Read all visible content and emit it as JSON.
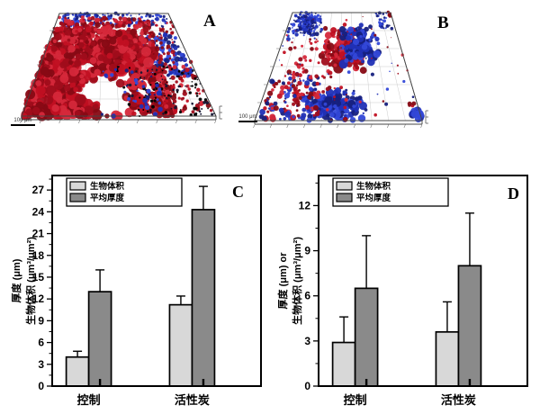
{
  "figure": {
    "background": "#ffffff"
  },
  "palettes": {
    "reds": [
      "#c11022",
      "#a00d1b",
      "#d5283a",
      "#870a14"
    ],
    "blues": [
      "#2030b6",
      "#16207e",
      "#3348d8"
    ],
    "darks": [
      "#141430",
      "#000000"
    ]
  },
  "panels": {
    "a": {
      "label": "A",
      "scale_bar": "100 μm",
      "render": {
        "seed": 11,
        "geom": {
          "tl": [
            66,
            15
          ],
          "tr": [
            187,
            15
          ],
          "bl": [
            24,
            129
          ],
          "br": [
            240,
            129
          ]
        },
        "holes": [
          [
            0.42,
            0.75,
            0.12
          ],
          [
            0.3,
            0.52,
            0.06
          ],
          [
            0.55,
            0.62,
            0.06
          ],
          [
            0.47,
            0.9,
            0.08
          ]
        ],
        "clusters": [
          {
            "palette": "blues",
            "shape": "box",
            "u": [
              0.04,
              0.97
            ],
            "v": [
              0.0,
              0.13
            ],
            "count": 170,
            "r": [
              1.5,
              4.0
            ]
          },
          {
            "palette": "blues",
            "shape": "box",
            "u": [
              0.7,
              0.97
            ],
            "v": [
              0.2,
              0.62
            ],
            "count": 110,
            "r": [
              1.5,
              4.0
            ]
          },
          {
            "palette": "reds",
            "shape": "box",
            "u": [
              0.0,
              0.8
            ],
            "v": [
              0.04,
              1.0
            ],
            "count": 800,
            "r": [
              2.0,
              5.0
            ]
          },
          {
            "palette": "reds",
            "shape": "gauss",
            "c": [
              0.45,
              0.42
            ],
            "s": [
              0.2,
              0.2
            ],
            "count": 420,
            "r": [
              3.0,
              7.0
            ]
          },
          {
            "palette": "reds",
            "shape": "box",
            "u": [
              0.0,
              0.3
            ],
            "v": [
              0.15,
              1.0
            ],
            "count": 300,
            "r": [
              2.5,
              5.5
            ]
          },
          {
            "palette": "reds",
            "shape": "box",
            "u": [
              0.75,
              1.0
            ],
            "v": [
              0.08,
              1.0
            ],
            "count": 130,
            "r": [
              1.2,
              3.0
            ]
          },
          {
            "palette": "darks",
            "shape": "box",
            "u": [
              0.5,
              1.0
            ],
            "v": [
              0.5,
              1.0
            ],
            "count": 140,
            "r": [
              0.7,
              1.6
            ]
          },
          {
            "palette": "blues",
            "shape": "box",
            "u": [
              0.4,
              0.75
            ],
            "v": [
              0.55,
              1.0
            ],
            "count": 60,
            "r": [
              1.0,
              2.5
            ]
          }
        ]
      }
    },
    "b": {
      "label": "B",
      "scale_bar": "100 μm",
      "render": {
        "seed": 29,
        "geom": {
          "tl": [
            67,
            14
          ],
          "tr": [
            176,
            14
          ],
          "bl": [
            25,
            134
          ],
          "br": [
            211,
            134
          ]
        },
        "holes": [],
        "clusters": [
          {
            "palette": "blues",
            "shape": "gauss",
            "c": [
              0.17,
              0.1
            ],
            "s": [
              0.09,
              0.08
            ],
            "count": 240,
            "r": [
              1.2,
              3.5
            ]
          },
          {
            "palette": "reds",
            "shape": "gauss",
            "c": [
              0.55,
              0.33
            ],
            "s": [
              0.12,
              0.12
            ],
            "count": 190,
            "r": [
              2.0,
              6.0
            ]
          },
          {
            "palette": "blues",
            "shape": "gauss",
            "c": [
              0.65,
              0.3
            ],
            "s": [
              0.11,
              0.12
            ],
            "count": 150,
            "r": [
              2.0,
              5.5
            ]
          },
          {
            "palette": "blues",
            "shape": "gauss",
            "c": [
              0.48,
              0.85
            ],
            "s": [
              0.13,
              0.09
            ],
            "count": 170,
            "r": [
              1.2,
              4.0
            ]
          },
          {
            "palette": "mix",
            "shape": "box",
            "u": [
              0.02,
              0.38
            ],
            "v": [
              0.55,
              1.0
            ],
            "count": 140,
            "r": [
              1.0,
              3.0
            ]
          },
          {
            "palette": "mix",
            "shape": "box",
            "u": [
              0.0,
              1.0
            ],
            "v": [
              0.0,
              1.0
            ],
            "count": 90,
            "r": [
              0.7,
              2.2
            ]
          },
          {
            "palette": "reds",
            "shape": "box",
            "u": [
              0.08,
              0.45
            ],
            "v": [
              0.25,
              0.62
            ],
            "count": 45,
            "r": [
              1.5,
              3.0
            ]
          },
          {
            "palette": "blues",
            "shape": "box",
            "u": [
              0.85,
              1.0
            ],
            "v": [
              0.0,
              0.15
            ],
            "count": 25,
            "r": [
              1.5,
              3.5
            ]
          },
          {
            "palette": "blues",
            "shape": "box",
            "u": [
              0.95,
              1.0
            ],
            "v": [
              0.9,
              1.0
            ],
            "count": 12,
            "r": [
              2.0,
              4.0
            ]
          },
          {
            "palette": "reds",
            "shape": "box",
            "u": [
              0.97,
              1.0
            ],
            "v": [
              0.0,
              0.05
            ],
            "count": 6,
            "r": [
              2.0,
              3.5
            ]
          }
        ]
      }
    }
  },
  "chart_data": [
    {
      "type": "bar",
      "panel_label": "C",
      "categories": [
        "控制",
        "活性炭"
      ],
      "category_pos": [
        0.175,
        0.67
      ],
      "series": [
        {
          "name": "生物体积",
          "values": [
            4.0,
            11.2
          ],
          "errors_plus": [
            0.8,
            1.2
          ],
          "color": "#d8d8d8"
        },
        {
          "name": "平均厚度",
          "values": [
            13.0,
            24.3
          ],
          "errors_plus": [
            3.0,
            3.2
          ],
          "color": "#8a8a8a"
        }
      ],
      "ylabel_lines": [
        "厚度 (μm)",
        "生物体积 (μm³/μm²)"
      ],
      "ylim": [
        0,
        29
      ],
      "ytick_step": 3,
      "ytick_max": 27,
      "legend_position": "top-left",
      "grid": false
    },
    {
      "type": "bar",
      "panel_label": "D",
      "categories": [
        "控制",
        "活性炭"
      ],
      "category_pos": [
        0.175,
        0.67
      ],
      "series": [
        {
          "name": "生物体积",
          "values": [
            2.9,
            3.6
          ],
          "errors_plus": [
            1.7,
            2.0
          ],
          "color": "#d8d8d8"
        },
        {
          "name": "平均厚度",
          "values": [
            6.5,
            8.0
          ],
          "errors_plus": [
            3.5,
            3.5
          ],
          "color": "#8a8a8a"
        }
      ],
      "ylabel_lines": [
        "厚度 (μm) or",
        "生物体积 (μm³/μm²)"
      ],
      "ylim": [
        0,
        14
      ],
      "ytick_step": 3,
      "ytick_max": 12,
      "legend_position": "top-left",
      "grid": false
    }
  ]
}
